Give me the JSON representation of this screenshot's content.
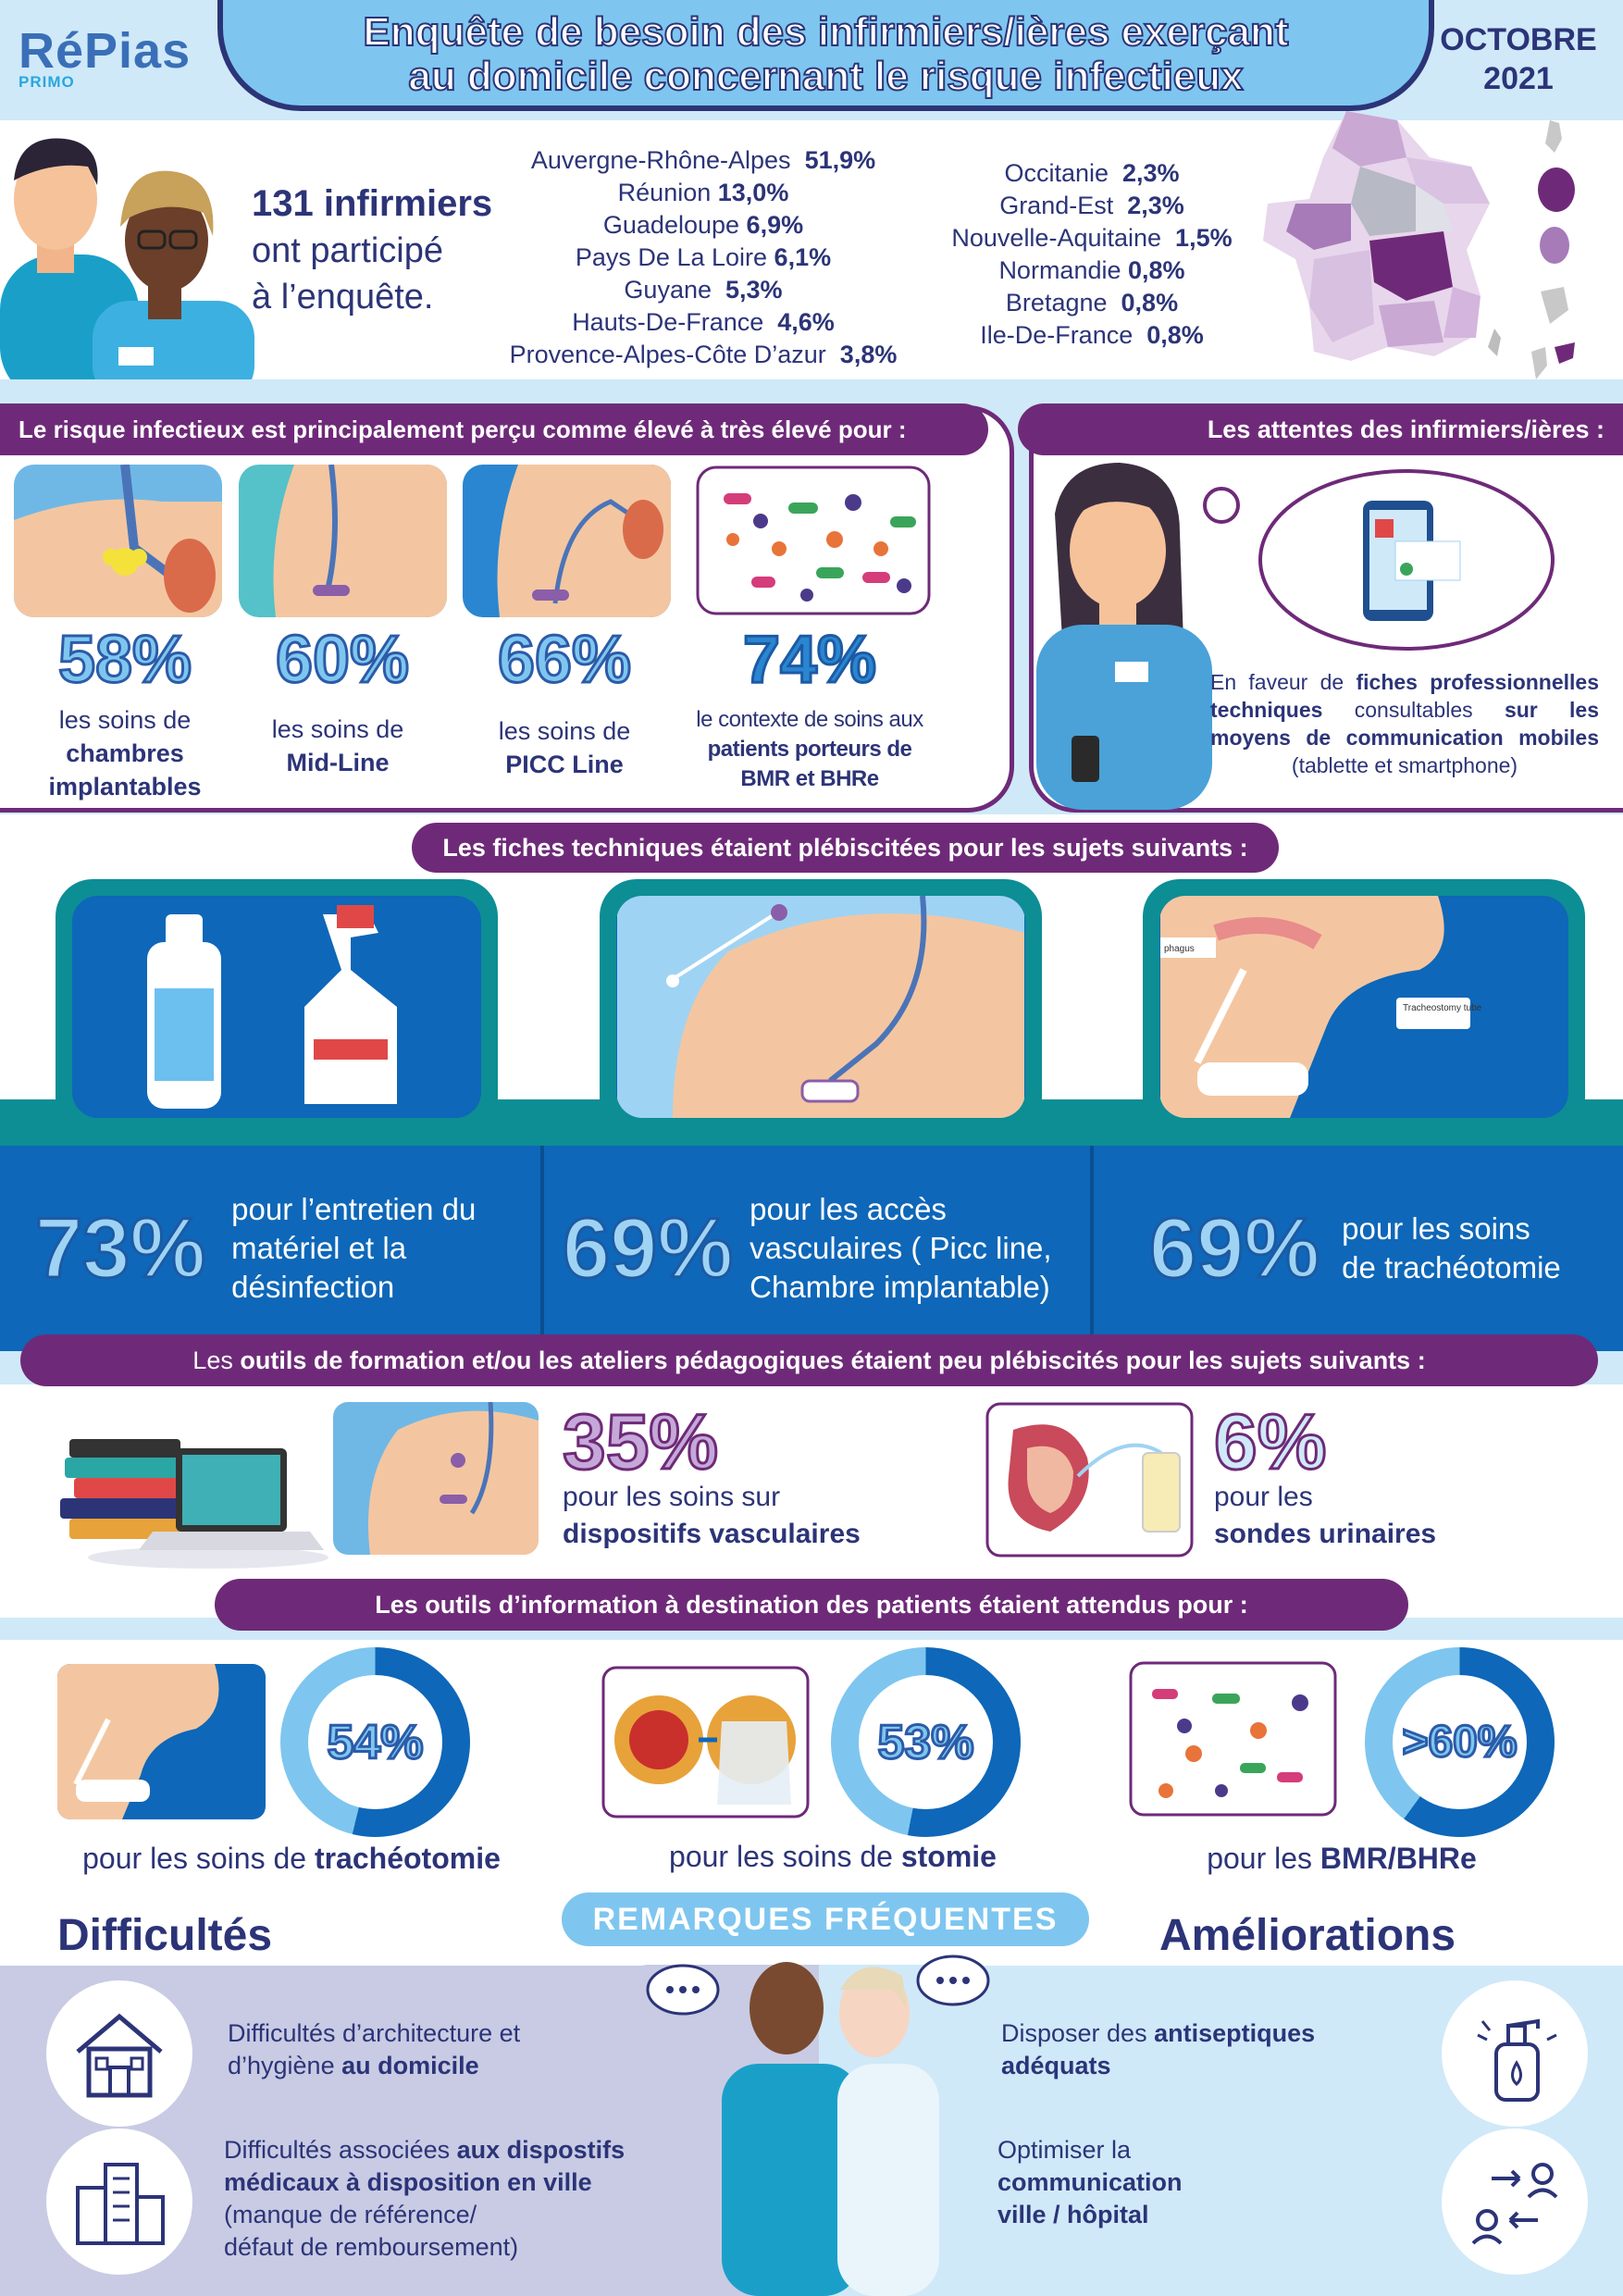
{
  "header": {
    "logo": "RéPias",
    "logo_sub": "PRIMO",
    "title_line1": "Enquête de besoin des infirmiers/ières exerçant",
    "title_line2": "au domicile concernant le risque infectieux",
    "month": "OCTOBRE",
    "year": "2021"
  },
  "participants": {
    "count_text": "131 infirmiers",
    "line2": "ont participé",
    "line3": "à l’enquête."
  },
  "regions_left": [
    {
      "name": "Auvergne-Rhône-Alpes",
      "value": "51,9%"
    },
    {
      "name": "Réunion",
      "value": "13,0%"
    },
    {
      "name": "Guadeloupe",
      "value": "6,9%"
    },
    {
      "name": "Pays De La Loire",
      "value": "6,1%"
    },
    {
      "name": "Guyane",
      "value": "5,3%"
    },
    {
      "name": "Hauts-De-France",
      "value": "4,6%"
    },
    {
      "name": "Provence-Alpes-Côte D’azur",
      "value": "3,8%"
    }
  ],
  "regions_right": [
    {
      "name": "Occitanie",
      "value": "2,3%"
    },
    {
      "name": "Grand-Est",
      "value": "2,3%"
    },
    {
      "name": "Nouvelle-Aquitaine",
      "value": "1,5%"
    },
    {
      "name": "Normandie",
      "value": "0,8%"
    },
    {
      "name": "Bretagne",
      "value": "0,8%"
    },
    {
      "name": "Ile-De-France",
      "value": "0,8%"
    }
  ],
  "risk": {
    "heading": "Le risque infectieux est principalement perçu comme élevé à très élevé pour :",
    "items": [
      {
        "pct": "58%",
        "line1": "les soins de",
        "line2": "chambres",
        "line3": "implantables"
      },
      {
        "pct": "60%",
        "line1": "les soins de",
        "line2": "Mid-Line",
        "line3": ""
      },
      {
        "pct": "66%",
        "line1": "les soins de",
        "line2": "PICC Line",
        "line3": ""
      },
      {
        "pct": "74%",
        "line1": "le contexte de soins aux",
        "line2": "patients porteurs de",
        "line3": "BMR et BHRe"
      }
    ]
  },
  "expectations": {
    "heading": "Les attentes des infirmiers/ières :",
    "t1": "En faveur de",
    "t2": "fiches professionnelles techniques",
    "t3": "consultables",
    "t4": "sur les moyens de communication mobiles",
    "t5": "(tablette et smartphone)"
  },
  "fiches": {
    "heading": "Les fiches techniques étaient plébiscitées pour les sujets suivants :",
    "items": [
      {
        "pct": "73%",
        "line1": "pour l’entretien du",
        "line2": "matériel et la",
        "line3": "désinfection"
      },
      {
        "pct": "69%",
        "line1": "pour les accès",
        "line2": "vasculaires ( Picc line,",
        "line3": "Chambre implantable)"
      },
      {
        "pct": "69%",
        "line1": "pour les soins",
        "line2": "de trachéotomie",
        "line3": ""
      }
    ],
    "label_esophagus": "phagus",
    "label_trach": "Tracheostomy tube"
  },
  "formation": {
    "heading_a": "Les",
    "heading_b": "outils de formation et/ou les ateliers pédagogiques",
    "heading_c": "étaient peu plébiscités pour les sujets suivants :",
    "items": [
      {
        "pct": "35%",
        "line1": "pour les soins sur",
        "line2": "dispositifs vasculaires"
      },
      {
        "pct": "6%",
        "line1": "pour les",
        "line2": "sondes urinaires"
      }
    ]
  },
  "information": {
    "heading": "Les outils d’information à destination des patients étaient attendus pour :",
    "items": [
      {
        "pct": "54%",
        "pre": "pour les soins de ",
        "bold": "trachéotomie",
        "fill": 0.54
      },
      {
        "pct": "53%",
        "pre": "pour les soins de ",
        "bold": "stomie",
        "fill": 0.53
      },
      {
        "pct": ">60%",
        "pre": "pour les ",
        "bold": "BMR/BHRe",
        "fill": 0.6
      }
    ]
  },
  "remarks": {
    "title": "REMARQUES FRÉQUENTES",
    "difficulties_title": "Difficultés",
    "improvements_title": "Améliorations",
    "d1_a": "Difficultés d’architecture et",
    "d1_b": "d’hygiène ",
    "d1_bold": "au domicile",
    "d2_a": "Difficultés associées ",
    "d2_bold1": "aux dispostifs",
    "d2_bold2": "médicaux à disposition en ville",
    "d2_c": "(manque de référence/",
    "d2_d": "défaut de remboursement)",
    "a1_a": "Disposer des ",
    "a1_bold1": "antiseptiques",
    "a1_bold2": "adéquats",
    "a2_a": "Optimiser la",
    "a2_bold1": "communication",
    "a2_bold2": "ville / hôpital"
  },
  "colors": {
    "navy": "#2c3478",
    "purple": "#6e2a78",
    "sky": "#7ec6ef",
    "blue": "#0e67b8",
    "teal": "#0c8e94"
  }
}
